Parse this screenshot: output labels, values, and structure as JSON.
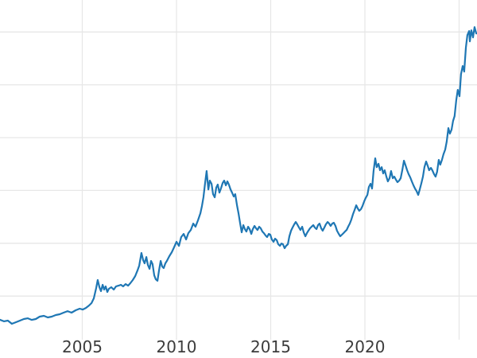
{
  "chart_data": {
    "type": "line",
    "title": "",
    "xlabel": "",
    "ylabel": "",
    "grid": true,
    "legend": "none",
    "x_axis": {
      "ticks": [
        {
          "year": 2005,
          "label": "2005"
        },
        {
          "year": 2010,
          "label": "2010"
        },
        {
          "year": 2015,
          "label": "2015"
        },
        {
          "year": 2020,
          "label": "2020"
        }
      ],
      "unlabeled_gridline_years": [
        2025
      ],
      "xlim": [
        2000.6,
        2025.95
      ]
    },
    "y_axis": {
      "tick_labels_visible": false,
      "gridline_values": [
        500,
        1000,
        1500,
        2000,
        2500,
        3000
      ],
      "ylim": [
        250,
        3150
      ],
      "note": "y-axis tick labels are cropped out of view; values estimated from unlabeled gridlines assuming 500-unit spacing"
    },
    "colors": {
      "line": "#1f77b4",
      "gridline": "#e7e7e7",
      "tick_label": "#3c3c3c",
      "background": "#ffffff"
    },
    "series": [
      {
        "name": "series-1",
        "points": [
          [
            2000.63,
            276
          ],
          [
            2000.84,
            261
          ],
          [
            2001.05,
            268
          ],
          [
            2001.26,
            238
          ],
          [
            2001.48,
            253
          ],
          [
            2001.69,
            268
          ],
          [
            2001.9,
            283
          ],
          [
            2002.11,
            290
          ],
          [
            2002.32,
            275
          ],
          [
            2002.53,
            283
          ],
          [
            2002.74,
            306
          ],
          [
            2002.96,
            313
          ],
          [
            2003.17,
            298
          ],
          [
            2003.38,
            306
          ],
          [
            2003.59,
            321
          ],
          [
            2003.8,
            328
          ],
          [
            2004.01,
            343
          ],
          [
            2004.22,
            358
          ],
          [
            2004.43,
            343
          ],
          [
            2004.65,
            366
          ],
          [
            2004.86,
            381
          ],
          [
            2005.02,
            373
          ],
          [
            2005.19,
            388
          ],
          [
            2005.36,
            411
          ],
          [
            2005.49,
            434
          ],
          [
            2005.61,
            479
          ],
          [
            2005.74,
            577
          ],
          [
            2005.82,
            652
          ],
          [
            2005.91,
            584
          ],
          [
            2005.99,
            547
          ],
          [
            2006.08,
            607
          ],
          [
            2006.16,
            562
          ],
          [
            2006.24,
            592
          ],
          [
            2006.33,
            539
          ],
          [
            2006.41,
            569
          ],
          [
            2006.54,
            584
          ],
          [
            2006.67,
            562
          ],
          [
            2006.79,
            592
          ],
          [
            2006.92,
            599
          ],
          [
            2007.05,
            607
          ],
          [
            2007.17,
            592
          ],
          [
            2007.3,
            614
          ],
          [
            2007.43,
            599
          ],
          [
            2007.55,
            622
          ],
          [
            2007.68,
            652
          ],
          [
            2007.81,
            690
          ],
          [
            2007.93,
            742
          ],
          [
            2008.02,
            788
          ],
          [
            2008.14,
            908
          ],
          [
            2008.23,
            840
          ],
          [
            2008.31,
            810
          ],
          [
            2008.4,
            870
          ],
          [
            2008.48,
            795
          ],
          [
            2008.57,
            758
          ],
          [
            2008.65,
            833
          ],
          [
            2008.73,
            803
          ],
          [
            2008.82,
            697
          ],
          [
            2008.9,
            660
          ],
          [
            2008.99,
            645
          ],
          [
            2009.07,
            742
          ],
          [
            2009.16,
            833
          ],
          [
            2009.24,
            780
          ],
          [
            2009.32,
            765
          ],
          [
            2009.41,
            810
          ],
          [
            2009.49,
            833
          ],
          [
            2009.62,
            878
          ],
          [
            2009.75,
            916
          ],
          [
            2009.87,
            961
          ],
          [
            2010.0,
            1014
          ],
          [
            2010.13,
            976
          ],
          [
            2010.25,
            1059
          ],
          [
            2010.38,
            1089
          ],
          [
            2010.51,
            1036
          ],
          [
            2010.63,
            1096
          ],
          [
            2010.76,
            1126
          ],
          [
            2010.89,
            1187
          ],
          [
            2011.01,
            1157
          ],
          [
            2011.14,
            1217
          ],
          [
            2011.27,
            1285
          ],
          [
            2011.35,
            1352
          ],
          [
            2011.43,
            1435
          ],
          [
            2011.52,
            1571
          ],
          [
            2011.6,
            1684
          ],
          [
            2011.69,
            1510
          ],
          [
            2011.77,
            1593
          ],
          [
            2011.86,
            1563
          ],
          [
            2011.94,
            1465
          ],
          [
            2012.03,
            1435
          ],
          [
            2012.11,
            1526
          ],
          [
            2012.19,
            1556
          ],
          [
            2012.28,
            1480
          ],
          [
            2012.36,
            1518
          ],
          [
            2012.45,
            1571
          ],
          [
            2012.53,
            1593
          ],
          [
            2012.62,
            1548
          ],
          [
            2012.7,
            1586
          ],
          [
            2012.78,
            1556
          ],
          [
            2012.87,
            1510
          ],
          [
            2012.95,
            1480
          ],
          [
            2013.04,
            1443
          ],
          [
            2013.12,
            1465
          ],
          [
            2013.21,
            1360
          ],
          [
            2013.29,
            1285
          ],
          [
            2013.38,
            1187
          ],
          [
            2013.46,
            1104
          ],
          [
            2013.55,
            1172
          ],
          [
            2013.63,
            1134
          ],
          [
            2013.71,
            1111
          ],
          [
            2013.8,
            1157
          ],
          [
            2013.88,
            1134
          ],
          [
            2013.97,
            1089
          ],
          [
            2014.05,
            1134
          ],
          [
            2014.14,
            1164
          ],
          [
            2014.22,
            1142
          ],
          [
            2014.3,
            1126
          ],
          [
            2014.39,
            1157
          ],
          [
            2014.47,
            1142
          ],
          [
            2014.56,
            1111
          ],
          [
            2014.64,
            1096
          ],
          [
            2014.73,
            1074
          ],
          [
            2014.81,
            1059
          ],
          [
            2014.9,
            1089
          ],
          [
            2014.98,
            1081
          ],
          [
            2015.06,
            1036
          ],
          [
            2015.15,
            1014
          ],
          [
            2015.23,
            1044
          ],
          [
            2015.32,
            1029
          ],
          [
            2015.4,
            991
          ],
          [
            2015.49,
            976
          ],
          [
            2015.57,
            998
          ],
          [
            2015.65,
            991
          ],
          [
            2015.74,
            953
          ],
          [
            2015.82,
            976
          ],
          [
            2015.91,
            991
          ],
          [
            2015.99,
            1066
          ],
          [
            2016.08,
            1119
          ],
          [
            2016.16,
            1149
          ],
          [
            2016.25,
            1179
          ],
          [
            2016.33,
            1202
          ],
          [
            2016.41,
            1179
          ],
          [
            2016.5,
            1149
          ],
          [
            2016.58,
            1126
          ],
          [
            2016.67,
            1157
          ],
          [
            2016.75,
            1104
          ],
          [
            2016.84,
            1066
          ],
          [
            2016.92,
            1096
          ],
          [
            2017.0,
            1119
          ],
          [
            2017.09,
            1142
          ],
          [
            2017.17,
            1157
          ],
          [
            2017.26,
            1172
          ],
          [
            2017.34,
            1149
          ],
          [
            2017.43,
            1134
          ],
          [
            2017.51,
            1172
          ],
          [
            2017.59,
            1187
          ],
          [
            2017.68,
            1142
          ],
          [
            2017.76,
            1119
          ],
          [
            2017.85,
            1149
          ],
          [
            2017.93,
            1179
          ],
          [
            2018.02,
            1202
          ],
          [
            2018.1,
            1187
          ],
          [
            2018.18,
            1164
          ],
          [
            2018.27,
            1187
          ],
          [
            2018.35,
            1194
          ],
          [
            2018.44,
            1164
          ],
          [
            2018.52,
            1119
          ],
          [
            2018.61,
            1089
          ],
          [
            2018.69,
            1066
          ],
          [
            2018.78,
            1081
          ],
          [
            2018.86,
            1096
          ],
          [
            2018.94,
            1111
          ],
          [
            2019.03,
            1126
          ],
          [
            2019.11,
            1157
          ],
          [
            2019.2,
            1187
          ],
          [
            2019.28,
            1224
          ],
          [
            2019.37,
            1277
          ],
          [
            2019.45,
            1315
          ],
          [
            2019.54,
            1360
          ],
          [
            2019.62,
            1330
          ],
          [
            2019.7,
            1307
          ],
          [
            2019.79,
            1322
          ],
          [
            2019.87,
            1352
          ],
          [
            2019.96,
            1397
          ],
          [
            2020.04,
            1428
          ],
          [
            2020.13,
            1458
          ],
          [
            2020.21,
            1533
          ],
          [
            2020.3,
            1563
          ],
          [
            2020.38,
            1518
          ],
          [
            2020.46,
            1684
          ],
          [
            2020.55,
            1804
          ],
          [
            2020.63,
            1721
          ],
          [
            2020.72,
            1752
          ],
          [
            2020.8,
            1691
          ],
          [
            2020.89,
            1721
          ],
          [
            2020.97,
            1661
          ],
          [
            2021.05,
            1691
          ],
          [
            2021.14,
            1631
          ],
          [
            2021.22,
            1586
          ],
          [
            2021.31,
            1616
          ],
          [
            2021.39,
            1684
          ],
          [
            2021.48,
            1616
          ],
          [
            2021.56,
            1631
          ],
          [
            2021.65,
            1601
          ],
          [
            2021.73,
            1578
          ],
          [
            2021.82,
            1593
          ],
          [
            2021.9,
            1616
          ],
          [
            2021.99,
            1699
          ],
          [
            2022.07,
            1782
          ],
          [
            2022.16,
            1736
          ],
          [
            2022.24,
            1691
          ],
          [
            2022.32,
            1654
          ],
          [
            2022.41,
            1623
          ],
          [
            2022.49,
            1586
          ],
          [
            2022.58,
            1548
          ],
          [
            2022.66,
            1518
          ],
          [
            2022.74,
            1495
          ],
          [
            2022.83,
            1458
          ],
          [
            2022.91,
            1510
          ],
          [
            2023.0,
            1571
          ],
          [
            2023.08,
            1631
          ],
          [
            2023.16,
            1721
          ],
          [
            2023.25,
            1774
          ],
          [
            2023.33,
            1736
          ],
          [
            2023.41,
            1691
          ],
          [
            2023.5,
            1714
          ],
          [
            2023.58,
            1691
          ],
          [
            2023.67,
            1654
          ],
          [
            2023.75,
            1631
          ],
          [
            2023.83,
            1676
          ],
          [
            2023.92,
            1789
          ],
          [
            2024.0,
            1744
          ],
          [
            2024.09,
            1789
          ],
          [
            2024.17,
            1842
          ],
          [
            2024.26,
            1887
          ],
          [
            2024.34,
            1962
          ],
          [
            2024.43,
            2090
          ],
          [
            2024.51,
            2038
          ],
          [
            2024.6,
            2075
          ],
          [
            2024.68,
            2158
          ],
          [
            2024.76,
            2203
          ],
          [
            2024.85,
            2354
          ],
          [
            2024.93,
            2452
          ],
          [
            2025.02,
            2392
          ],
          [
            2025.1,
            2602
          ],
          [
            2025.19,
            2678
          ],
          [
            2025.27,
            2625
          ],
          [
            2025.36,
            2851
          ],
          [
            2025.44,
            2971
          ],
          [
            2025.53,
            3009
          ],
          [
            2025.57,
            2911
          ],
          [
            2025.65,
            3016
          ],
          [
            2025.74,
            2949
          ],
          [
            2025.82,
            3046
          ],
          [
            2025.91,
            2986
          ]
        ]
      }
    ]
  }
}
